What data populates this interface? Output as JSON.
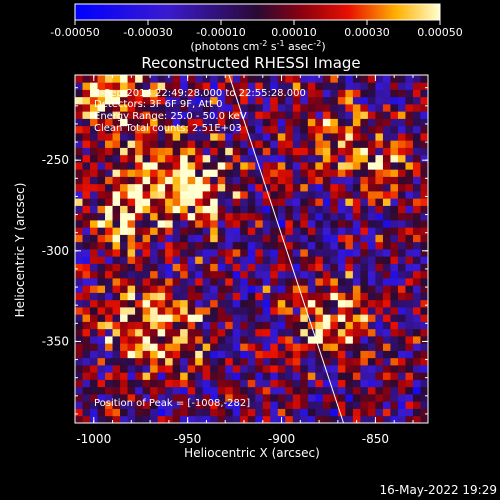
{
  "colorbar": {
    "ticks": [
      "-0.00050",
      "-0.00030",
      "-0.00010",
      "0.00010",
      "0.00030",
      "0.00050"
    ],
    "unit_label": "(photons cm",
    "unit_exp1": "-2",
    "unit_mid": " s",
    "unit_exp2": "-1",
    "unit_mid2": " asec",
    "unit_exp3": "-2",
    "unit_end": ")"
  },
  "chart_data": {
    "type": "heatmap",
    "title": "Reconstructed RHESSI Image",
    "xlabel": "Heliocentric X (arcsec)",
    "ylabel": "Heliocentric Y (arcsec)",
    "x_ticks": [
      "-1000",
      "-950",
      "-900",
      "-850"
    ],
    "y_ticks": [
      "-250",
      "-300",
      "-350"
    ],
    "xlim": [
      -1010,
      -822
    ],
    "ylim": [
      -395,
      -203
    ],
    "clim": [
      -0.0005,
      0.0005
    ],
    "annotations": [
      "4-Sep-2014 22:49:28.000 to 22:55:28.000",
      "Detectors: 3F 6F 9F, Att 0",
      "Energy Range: 25.0 - 50.0 keV",
      "Clean    Total counts: 2.51E+03"
    ],
    "peak_label": "Position of Peak = [-1008,-282]",
    "bright_sources": [
      {
        "x": -990,
        "y": -215,
        "level": 0.0005
      },
      {
        "x": -945,
        "y": -270,
        "level": 0.00045
      },
      {
        "x": -985,
        "y": -280,
        "level": 0.0004
      },
      {
        "x": -965,
        "y": -255,
        "level": 0.00035
      },
      {
        "x": -875,
        "y": -340,
        "level": 0.00045
      },
      {
        "x": -960,
        "y": -345,
        "level": 0.00035
      },
      {
        "x": -850,
        "y": -255,
        "level": 0.0003
      },
      {
        "x": -880,
        "y": -235,
        "level": 0.0003
      },
      {
        "x": -985,
        "y": -340,
        "level": 0.00025
      }
    ],
    "limb_line": {
      "x1": -928,
      "y1": -203,
      "x2": -867,
      "y2": -395
    }
  },
  "footer": {
    "timestamp": "16-May-2022 19:29"
  }
}
